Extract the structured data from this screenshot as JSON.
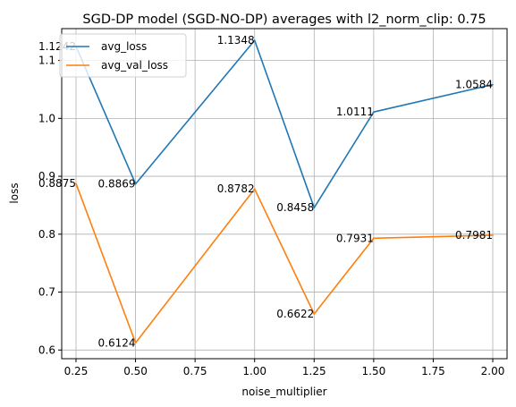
{
  "chart_data": {
    "type": "line",
    "title": "SGD-DP model (SGD-NO-DP) averages with l2_norm_clip: 0.75",
    "xlabel": "noise_multiplier",
    "ylabel": "loss",
    "x": [
      0.25,
      0.5,
      1.0,
      1.25,
      1.5,
      2.0
    ],
    "xlim": [
      0.19,
      2.06
    ],
    "ylim": [
      0.585,
      1.155
    ],
    "xticks": [
      0.25,
      0.5,
      0.75,
      1.0,
      1.25,
      1.5,
      1.75,
      2.0
    ],
    "xtick_labels": [
      "0.25",
      "0.50",
      "0.75",
      "1.00",
      "1.25",
      "1.50",
      "1.75",
      "2.00"
    ],
    "yticks": [
      0.6,
      0.7,
      0.8,
      0.9,
      1.0,
      1.1
    ],
    "ytick_labels": [
      "0.6",
      "0.7",
      "0.8",
      "0.9",
      "1.0",
      "1.1"
    ],
    "grid": true,
    "legend": "top-left",
    "series": [
      {
        "name": "avg_loss",
        "color": "#1f77b4",
        "values": [
          1.1242,
          0.8869,
          1.1348,
          0.8458,
          1.0111,
          1.0584
        ],
        "labels": [
          "1.1242",
          "0.8869",
          "1.1348",
          "0.8458",
          "1.0111",
          "1.0584"
        ]
      },
      {
        "name": "avg_val_loss",
        "color": "#ff7f0e",
        "values": [
          0.8875,
          0.6124,
          0.8782,
          0.6622,
          0.7931,
          0.7981
        ],
        "labels": [
          "0.8875",
          "0.6124",
          "0.8782",
          "0.6622",
          "0.7931",
          "0.7981"
        ]
      }
    ]
  }
}
